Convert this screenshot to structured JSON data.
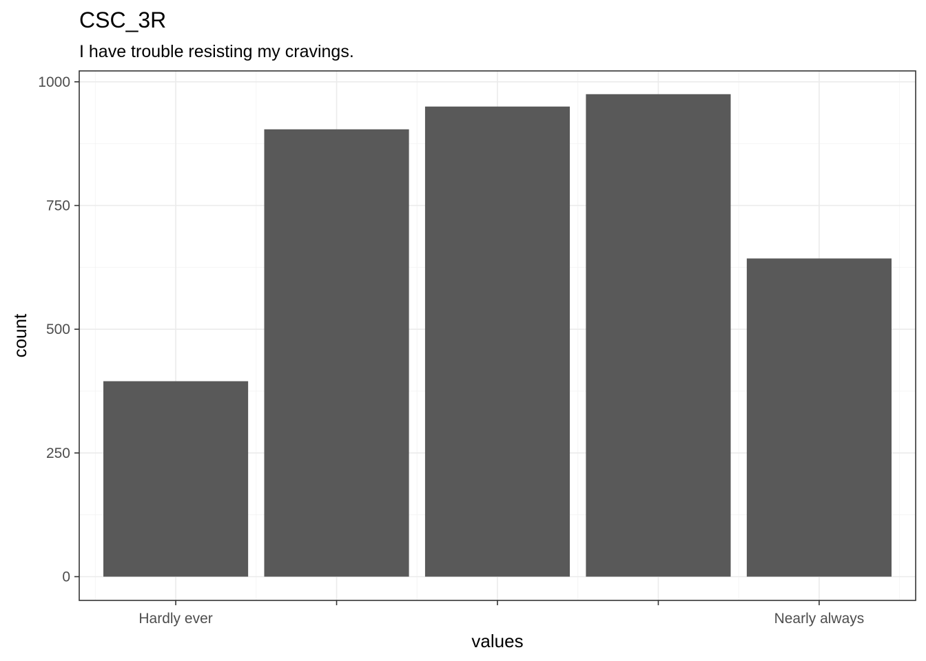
{
  "title": "CSC_3R",
  "subtitle": "I have trouble resisting my cravings.",
  "chart_data": {
    "type": "bar",
    "categories": [
      "Hardly ever",
      "",
      "",
      "",
      "Nearly always"
    ],
    "values": [
      395,
      904,
      950,
      975,
      643
    ],
    "xlabel": "values",
    "ylabel": "count",
    "ylim": [
      -48,
      1022
    ],
    "yticks": [
      0,
      250,
      500,
      750,
      1000
    ],
    "grid": true,
    "bar_color": "#595959",
    "grid_color": "#ebebeb",
    "border_color": "#333333"
  }
}
